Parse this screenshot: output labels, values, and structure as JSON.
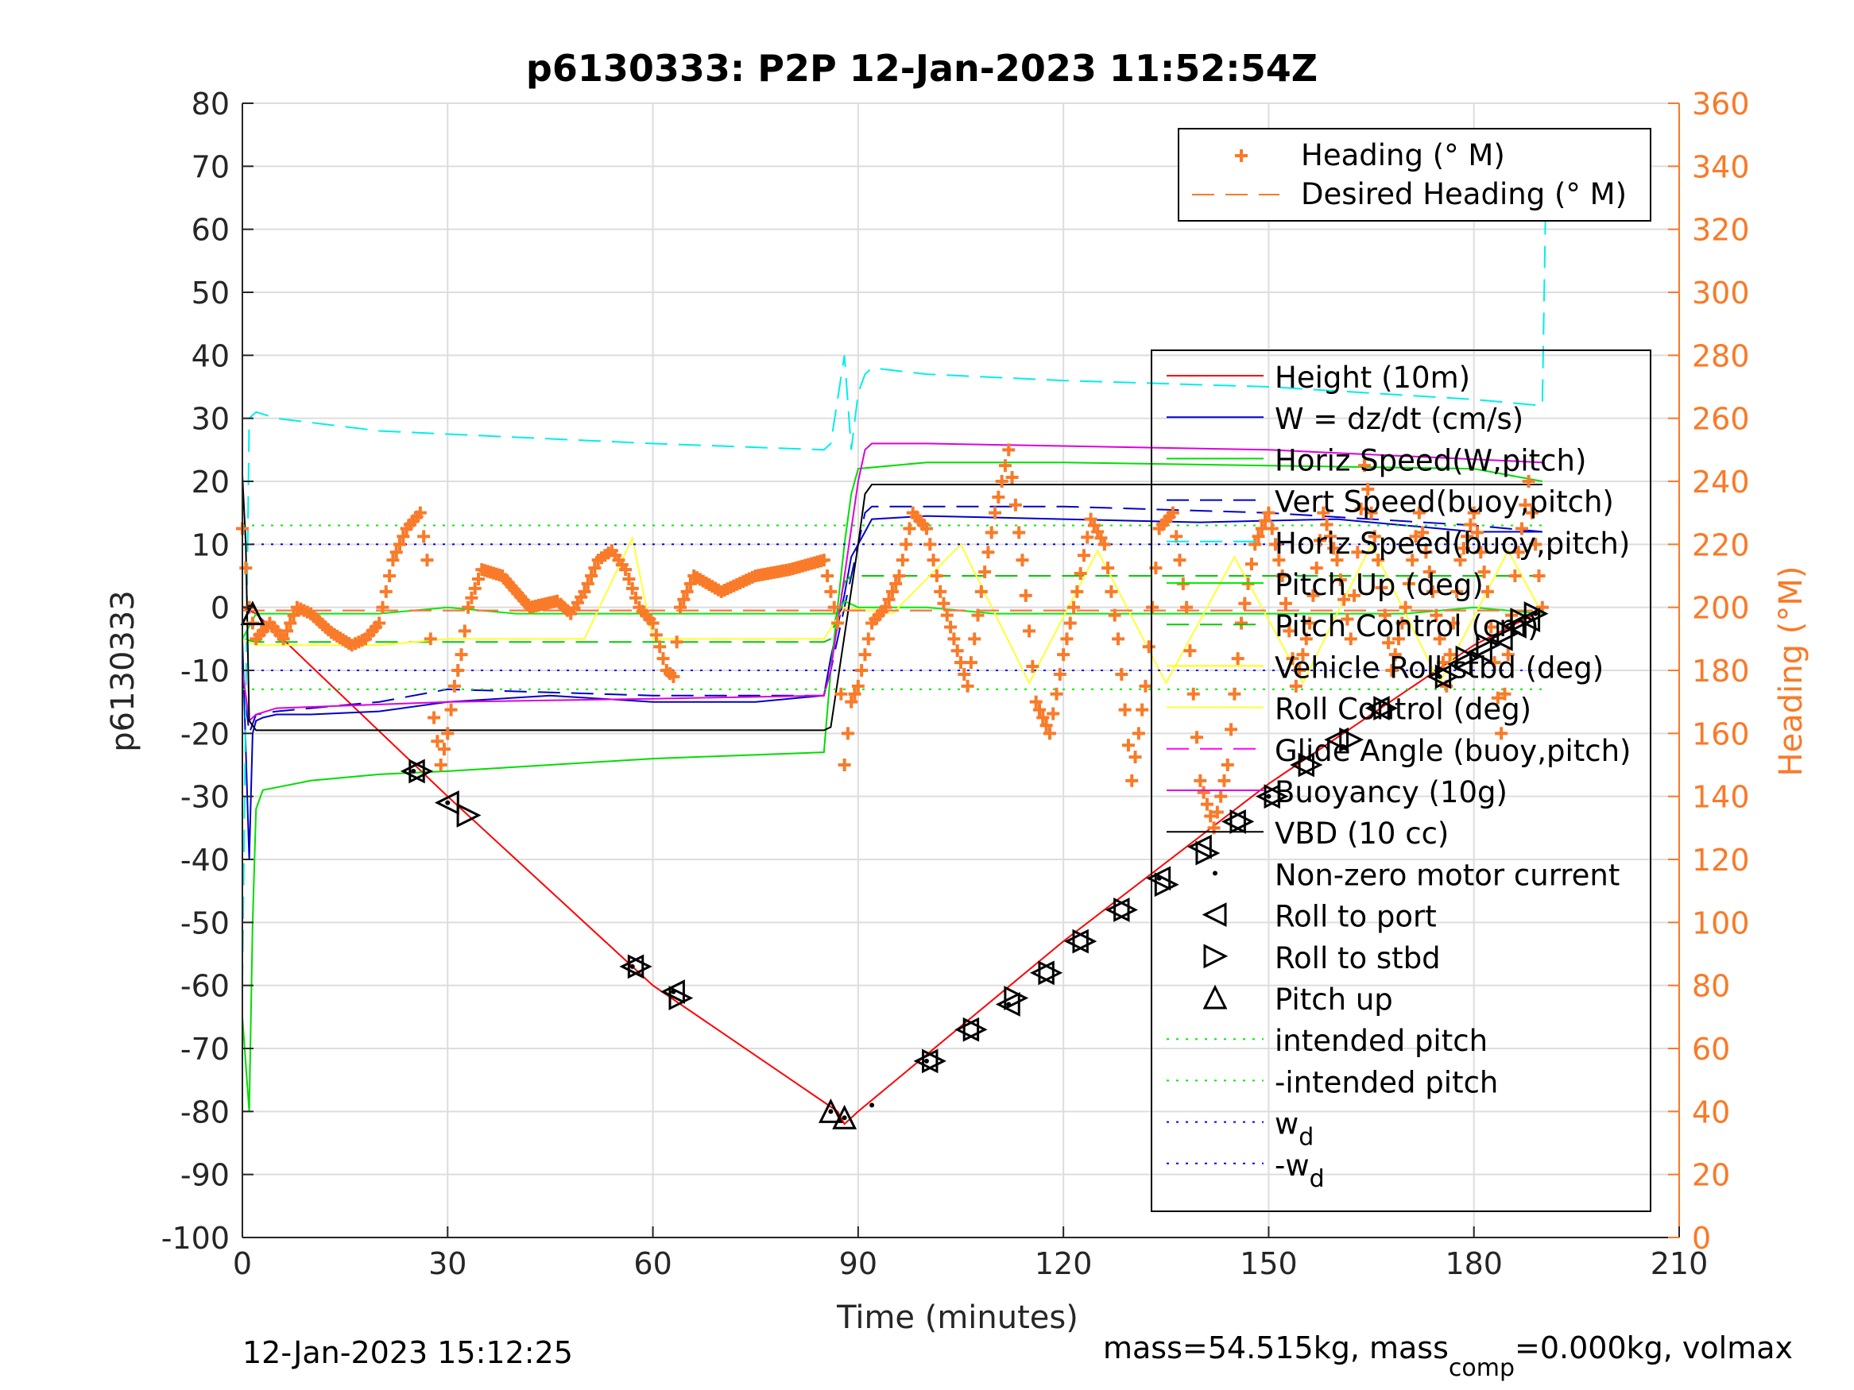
{
  "title": "p6130333: P2P 12-Jan-2023 11:52:54Z",
  "footer_left": "12-Jan-2023 15:12:25",
  "footer_right": {
    "text_a": "mass=54.515kg, mass",
    "sub": "comp",
    "text_b": "=0.000kg, volmax"
  },
  "colors": {
    "heading": "#F97A28",
    "height": "#FF0000",
    "w": "#0000CC",
    "horiz_w": "#00DD00",
    "vert_buoy": "#0000CC",
    "horiz_buoy": "#00EEEE",
    "pitch_up": "#00EE00",
    "pitch_control": "#00CC00",
    "roll": "#FFFF00",
    "roll_control": "#FFFF33",
    "glide": "#FF00FF",
    "buoyancy": "#DD00DD",
    "vbd": "#000000",
    "intended_pitch": "#00EE00",
    "wd": "#0000FF",
    "grid": "#DDDDDD",
    "axis": "#262626"
  },
  "chart_data": {
    "type": "line",
    "title": "p6130333: P2P 12-Jan-2023 11:52:54Z",
    "xlabel": "Time (minutes)",
    "ylabel_left": "p6130333",
    "ylabel_right": "Heading (°M)",
    "xlim": [
      0,
      210
    ],
    "ylim_left": [
      -100,
      80
    ],
    "ylim_right": [
      0,
      360
    ],
    "x_ticks": [
      "0",
      "30",
      "60",
      "90",
      "120",
      "150",
      "180",
      "210"
    ],
    "y_ticks_left": [
      "80",
      "70",
      "60",
      "50",
      "40",
      "30",
      "20",
      "10",
      "0",
      "-10",
      "-20",
      "-30",
      "-40",
      "-50",
      "-60",
      "-70",
      "-80",
      "-90",
      "-100"
    ],
    "y_ticks_right": [
      "360",
      "340",
      "320",
      "300",
      "280",
      "260",
      "240",
      "220",
      "200",
      "180",
      "160",
      "140",
      "120",
      "100",
      "80",
      "60",
      "40",
      "20",
      "0"
    ],
    "grid": true,
    "legend_top": {
      "placement": "top-right",
      "entries": [
        "Heading (° M)",
        "Desired Heading (° M)"
      ]
    },
    "legend_main": {
      "placement": "right",
      "entries": [
        "Height (10m)",
        "W = dz/dt (cm/s)",
        "Horiz Speed(W,pitch)",
        "Vert Speed(buoy,pitch)",
        "Horiz Speed(buoy,pitch)",
        "Pitch Up (deg)",
        "Pitch Control (cm)",
        "Vehicle Roll stbd (deg)",
        "Roll Control (deg)",
        "Glide Angle (buoy,pitch)",
        "Buoyancy (10g)",
        "VBD (10 cc)",
        "Non-zero motor current",
        "Roll to port",
        "Roll to stbd",
        "Pitch up",
        "intended pitch",
        "-intended pitch",
        "w",
        "-w"
      ],
      "subscripts": {
        "18": "d",
        "19": "d"
      }
    },
    "series": [
      {
        "name": "Height (10m)",
        "axis": "left",
        "x": [
          0,
          2,
          30,
          60,
          87,
          88,
          90,
          120,
          150,
          180,
          189
        ],
        "y": [
          0,
          -1,
          -30,
          -60,
          -80,
          -82,
          -80,
          -53,
          -28,
          -6,
          -1
        ]
      },
      {
        "name": "W = dz/dt (cm/s)",
        "axis": "left",
        "x": [
          0,
          1,
          1.5,
          2,
          3,
          5,
          10,
          20,
          30,
          45,
          60,
          75,
          85,
          86,
          88,
          89,
          91,
          92,
          100,
          120,
          140,
          160,
          180,
          190
        ],
        "y": [
          -5,
          -40,
          -20,
          -18,
          -17.5,
          -17,
          -17,
          -16.5,
          -15,
          -14,
          -15,
          -15,
          -14,
          -8,
          2,
          8,
          12,
          14,
          14.5,
          14,
          13.5,
          14,
          12,
          12
        ]
      },
      {
        "name": "Horiz Speed(W,pitch)",
        "axis": "left",
        "x": [
          0,
          1,
          1.5,
          2,
          3,
          10,
          20,
          30,
          60,
          85,
          86,
          88,
          89,
          90,
          100,
          120,
          150,
          180,
          190
        ],
        "y": [
          -65,
          -80,
          -50,
          -32,
          -29,
          -27.5,
          -26.5,
          -26,
          -24,
          -23,
          -10,
          10,
          18,
          22,
          23,
          23,
          22.5,
          22,
          20
        ]
      },
      {
        "name": "Vert Speed(buoy,pitch)",
        "axis": "left",
        "x": [
          0,
          1,
          2,
          5,
          20,
          30,
          60,
          85,
          86,
          90,
          91,
          92,
          100,
          120,
          150,
          180,
          190
        ],
        "y": [
          -10,
          -20,
          -17,
          -16.5,
          -15,
          -13,
          -14,
          -14,
          -10,
          10,
          15,
          16,
          16,
          16,
          15,
          13,
          12
        ]
      },
      {
        "name": "Horiz Speed(buoy,pitch)",
        "axis": "left",
        "x": [
          0,
          1,
          2,
          5,
          20,
          40,
          60,
          85,
          86,
          88,
          89,
          90,
          91,
          92,
          100,
          120,
          150,
          180,
          190,
          190.5
        ],
        "y": [
          -60,
          30,
          31,
          30,
          28,
          27,
          26,
          25,
          26,
          40,
          25,
          34,
          37,
          38,
          37,
          36,
          35,
          33,
          32,
          65
        ]
      },
      {
        "name": "Pitch Up (deg)",
        "axis": "left",
        "x": [
          0,
          2,
          10,
          20,
          30,
          40,
          50,
          60,
          70,
          85,
          87,
          88,
          90,
          100,
          110,
          120,
          130,
          140,
          150,
          160,
          170,
          180,
          190
        ],
        "y": [
          -5,
          -1,
          -1,
          -1,
          0,
          -1,
          -1,
          -1,
          -1,
          -1,
          -1,
          1,
          0,
          0,
          -1,
          -1,
          -1,
          -1,
          -1,
          -1,
          -1,
          0,
          -1
        ]
      },
      {
        "name": "Pitch Control (cm)",
        "axis": "left",
        "x": [
          0,
          2,
          85,
          86,
          88,
          89,
          190
        ],
        "y": [
          -5,
          -5.5,
          -5.5,
          -5,
          4,
          5,
          5
        ]
      },
      {
        "name": "Roll Control (deg)",
        "axis": "left",
        "x": [
          0,
          2,
          20,
          30,
          40,
          50,
          57,
          60,
          70,
          85,
          88,
          95,
          105,
          115,
          125,
          135,
          145,
          155,
          165,
          175,
          185,
          190
        ],
        "y": [
          -5,
          -6,
          -6,
          -5,
          -5,
          -5,
          11,
          -5,
          -5,
          -5,
          0,
          -1,
          10,
          -12,
          9,
          -12,
          8,
          -12,
          10,
          -12,
          9,
          -1
        ]
      },
      {
        "name": "Glide Angle (buoy,pitch)",
        "axis": "left",
        "x": [
          0,
          190
        ],
        "y": [
          -0.5,
          -0.5
        ]
      },
      {
        "name": "Buoyancy (10g)",
        "axis": "left",
        "x": [
          0,
          1,
          2,
          5,
          30,
          60,
          85,
          86,
          90,
          91,
          92,
          100,
          150,
          190
        ],
        "y": [
          -10,
          -18,
          -17,
          -16,
          -15,
          -14.5,
          -14,
          -10,
          20,
          25,
          26,
          26,
          25,
          23
        ]
      },
      {
        "name": "VBD (10 cc)",
        "axis": "left",
        "x": [
          0,
          0.5,
          1,
          2,
          85,
          86,
          90,
          91,
          92,
          190
        ],
        "y": [
          21,
          10,
          -18,
          -19.5,
          -19.5,
          -19,
          10,
          18,
          19.5,
          19.5
        ]
      },
      {
        "name": "intended pitch",
        "axis": "left",
        "x": [
          0,
          190
        ],
        "y": [
          13,
          13
        ]
      },
      {
        "name": "-intended pitch",
        "axis": "left",
        "x": [
          0,
          190
        ],
        "y": [
          -13,
          -13
        ]
      },
      {
        "name": "w_d",
        "axis": "left",
        "x": [
          0,
          190
        ],
        "y": [
          10,
          10
        ]
      },
      {
        "name": "-w_d",
        "axis": "left",
        "x": [
          0,
          190
        ],
        "y": [
          -10,
          -10
        ]
      },
      {
        "name": "Heading (° M)",
        "axis": "right",
        "x": [
          0,
          1,
          2,
          4,
          6,
          8,
          10,
          13,
          16,
          18,
          20,
          22,
          24,
          26,
          27,
          28,
          29,
          30,
          31,
          32,
          33,
          35,
          38,
          42,
          46,
          48,
          50,
          52,
          54,
          56,
          58,
          60,
          62,
          63,
          64,
          66,
          70,
          75,
          80,
          85,
          86,
          87,
          88,
          89,
          90,
          92,
          94,
          96,
          98,
          100,
          102,
          104,
          106,
          108,
          110,
          112,
          114,
          116,
          118,
          120,
          122,
          124,
          126,
          128,
          130,
          132,
          134,
          136,
          138,
          140,
          142,
          144,
          146,
          148,
          150,
          152,
          154,
          156,
          158,
          160,
          162,
          164,
          166,
          168,
          170,
          172,
          174,
          176,
          178,
          180,
          182,
          184,
          186,
          188,
          190
        ],
        "y": [
          225,
          200,
          190,
          195,
          190,
          200,
          198,
          192,
          188,
          190,
          195,
          215,
          225,
          230,
          215,
          165,
          150,
          160,
          175,
          185,
          200,
          212,
          210,
          200,
          202,
          198,
          205,
          215,
          218,
          212,
          200,
          195,
          180,
          178,
          200,
          210,
          205,
          210,
          212,
          215,
          205,
          195,
          150,
          170,
          175,
          195,
          200,
          210,
          230,
          225,
          205,
          190,
          175,
          205,
          230,
          250,
          215,
          170,
          160,
          185,
          205,
          228,
          220,
          190,
          145,
          175,
          225,
          230,
          200,
          145,
          130,
          150,
          195,
          220,
          230,
          210,
          175,
          195,
          230,
          215,
          190,
          245,
          215,
          180,
          200,
          230,
          205,
          175,
          215,
          230,
          205,
          160,
          210,
          240,
          200
        ]
      },
      {
        "name": "Desired Heading (° M)",
        "axis": "right",
        "x": [
          0,
          190
        ],
        "y": [
          199,
          199
        ]
      },
      {
        "name": "Roll to port",
        "axis": "left",
        "marker": "triangle-left",
        "x": [
          25,
          30,
          57,
          63,
          100,
          106,
          112,
          117,
          122,
          128,
          134,
          140,
          145,
          150,
          155,
          160,
          166,
          175,
          178,
          181,
          184,
          186,
          188
        ],
        "y": [
          -26,
          -31,
          -57,
          -61,
          -72,
          -67,
          -63,
          -58,
          -53,
          -48,
          -43,
          -38,
          -34,
          -30,
          -25,
          -21,
          -16,
          -11,
          -9,
          -7,
          -5,
          -3,
          -2
        ]
      },
      {
        "name": "Roll to stbd",
        "axis": "left",
        "marker": "triangle-right",
        "x": [
          26,
          33,
          58,
          64,
          101,
          107,
          113,
          118,
          123,
          129,
          135,
          141,
          146,
          151,
          156,
          162,
          167,
          176,
          179,
          182,
          185,
          187,
          189
        ],
        "y": [
          -26,
          -33,
          -57,
          -62,
          -72,
          -67,
          -62,
          -58,
          -53,
          -48,
          -44,
          -39,
          -34,
          -30,
          -25,
          -21,
          -16,
          -11,
          -8,
          -6,
          -4,
          -2,
          -1
        ]
      },
      {
        "name": "Pitch up",
        "axis": "left",
        "marker": "triangle-up",
        "x": [
          1.5,
          86,
          88
        ],
        "y": [
          -1,
          -80,
          -81
        ]
      },
      {
        "name": "Non-zero motor current",
        "axis": "left",
        "marker": "dot",
        "x": [
          1,
          25,
          30,
          57,
          63,
          86,
          88,
          92,
          100,
          112,
          134,
          150,
          175,
          189
        ],
        "y": [
          0,
          -26,
          -31,
          -57,
          -61,
          -80,
          -81,
          -79,
          -72,
          -63,
          -43,
          -30,
          -11,
          -1
        ]
      }
    ]
  }
}
